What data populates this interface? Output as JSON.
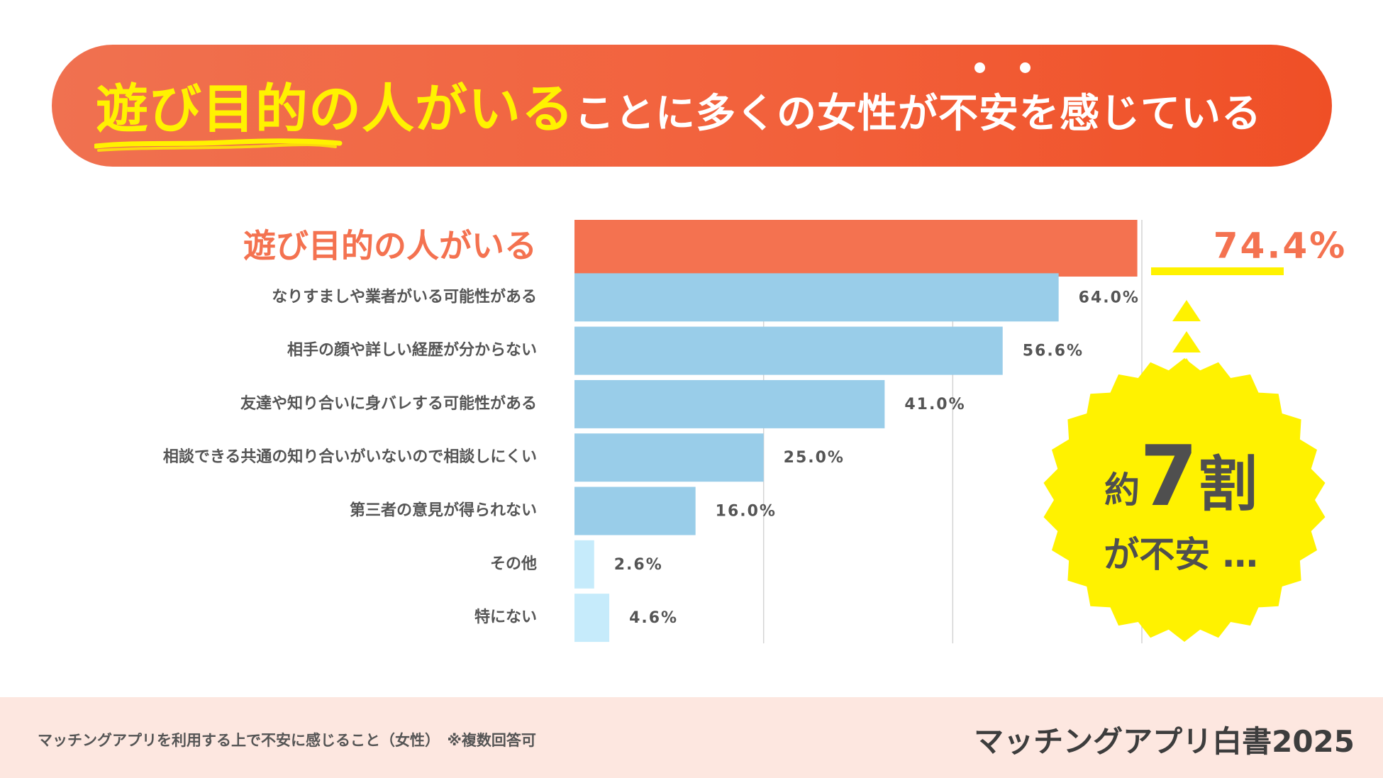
{
  "headline": {
    "emphasis": "遊び目的の人がいる",
    "rest": "ことに多くの女性が不安を感じている"
  },
  "chart_data": {
    "type": "bar",
    "orientation": "horizontal",
    "categories": [
      "遊び目的の人がいる",
      "なりすましや業者がいる可能性がある",
      "相手の顔や詳しい経歴が分からない",
      "友達や知り合いに身バレする可能性がある",
      "相談できる共通の知り合いがいないので相談しにくい",
      "第三者の意見が得られない",
      "その他",
      "特にない"
    ],
    "values": [
      74.4,
      64.0,
      56.6,
      41.0,
      25.0,
      16.0,
      2.6,
      4.6
    ],
    "value_labels": [
      "74.4%",
      "64.0%",
      "56.6%",
      "41.0%",
      "25.0%",
      "16.0%",
      "2.6%",
      "4.6%"
    ],
    "xlim": [
      0,
      75
    ],
    "gridlines": [
      25,
      50,
      75
    ],
    "highlight_index": 0,
    "colors": {
      "highlight": "#f47250",
      "main": "#99cde9",
      "other": "#c6ebfb",
      "value_highlight": "#f47250",
      "value": "#555555",
      "grid": "#d4d4d4"
    }
  },
  "callout": {
    "prefix": "約",
    "number": "7",
    "unit": "割",
    "suffix": "が不安 …"
  },
  "footer": {
    "note": "マッチングアプリを利用する上で不安に感じること（女性）　※複数回答可",
    "brand": "マッチングアプリ白書2025"
  },
  "colors": {
    "accent_yellow": "#fff200",
    "banner_start": "#f07150",
    "banner_end": "#ef4f26",
    "footer_bg": "#fde7e0"
  }
}
